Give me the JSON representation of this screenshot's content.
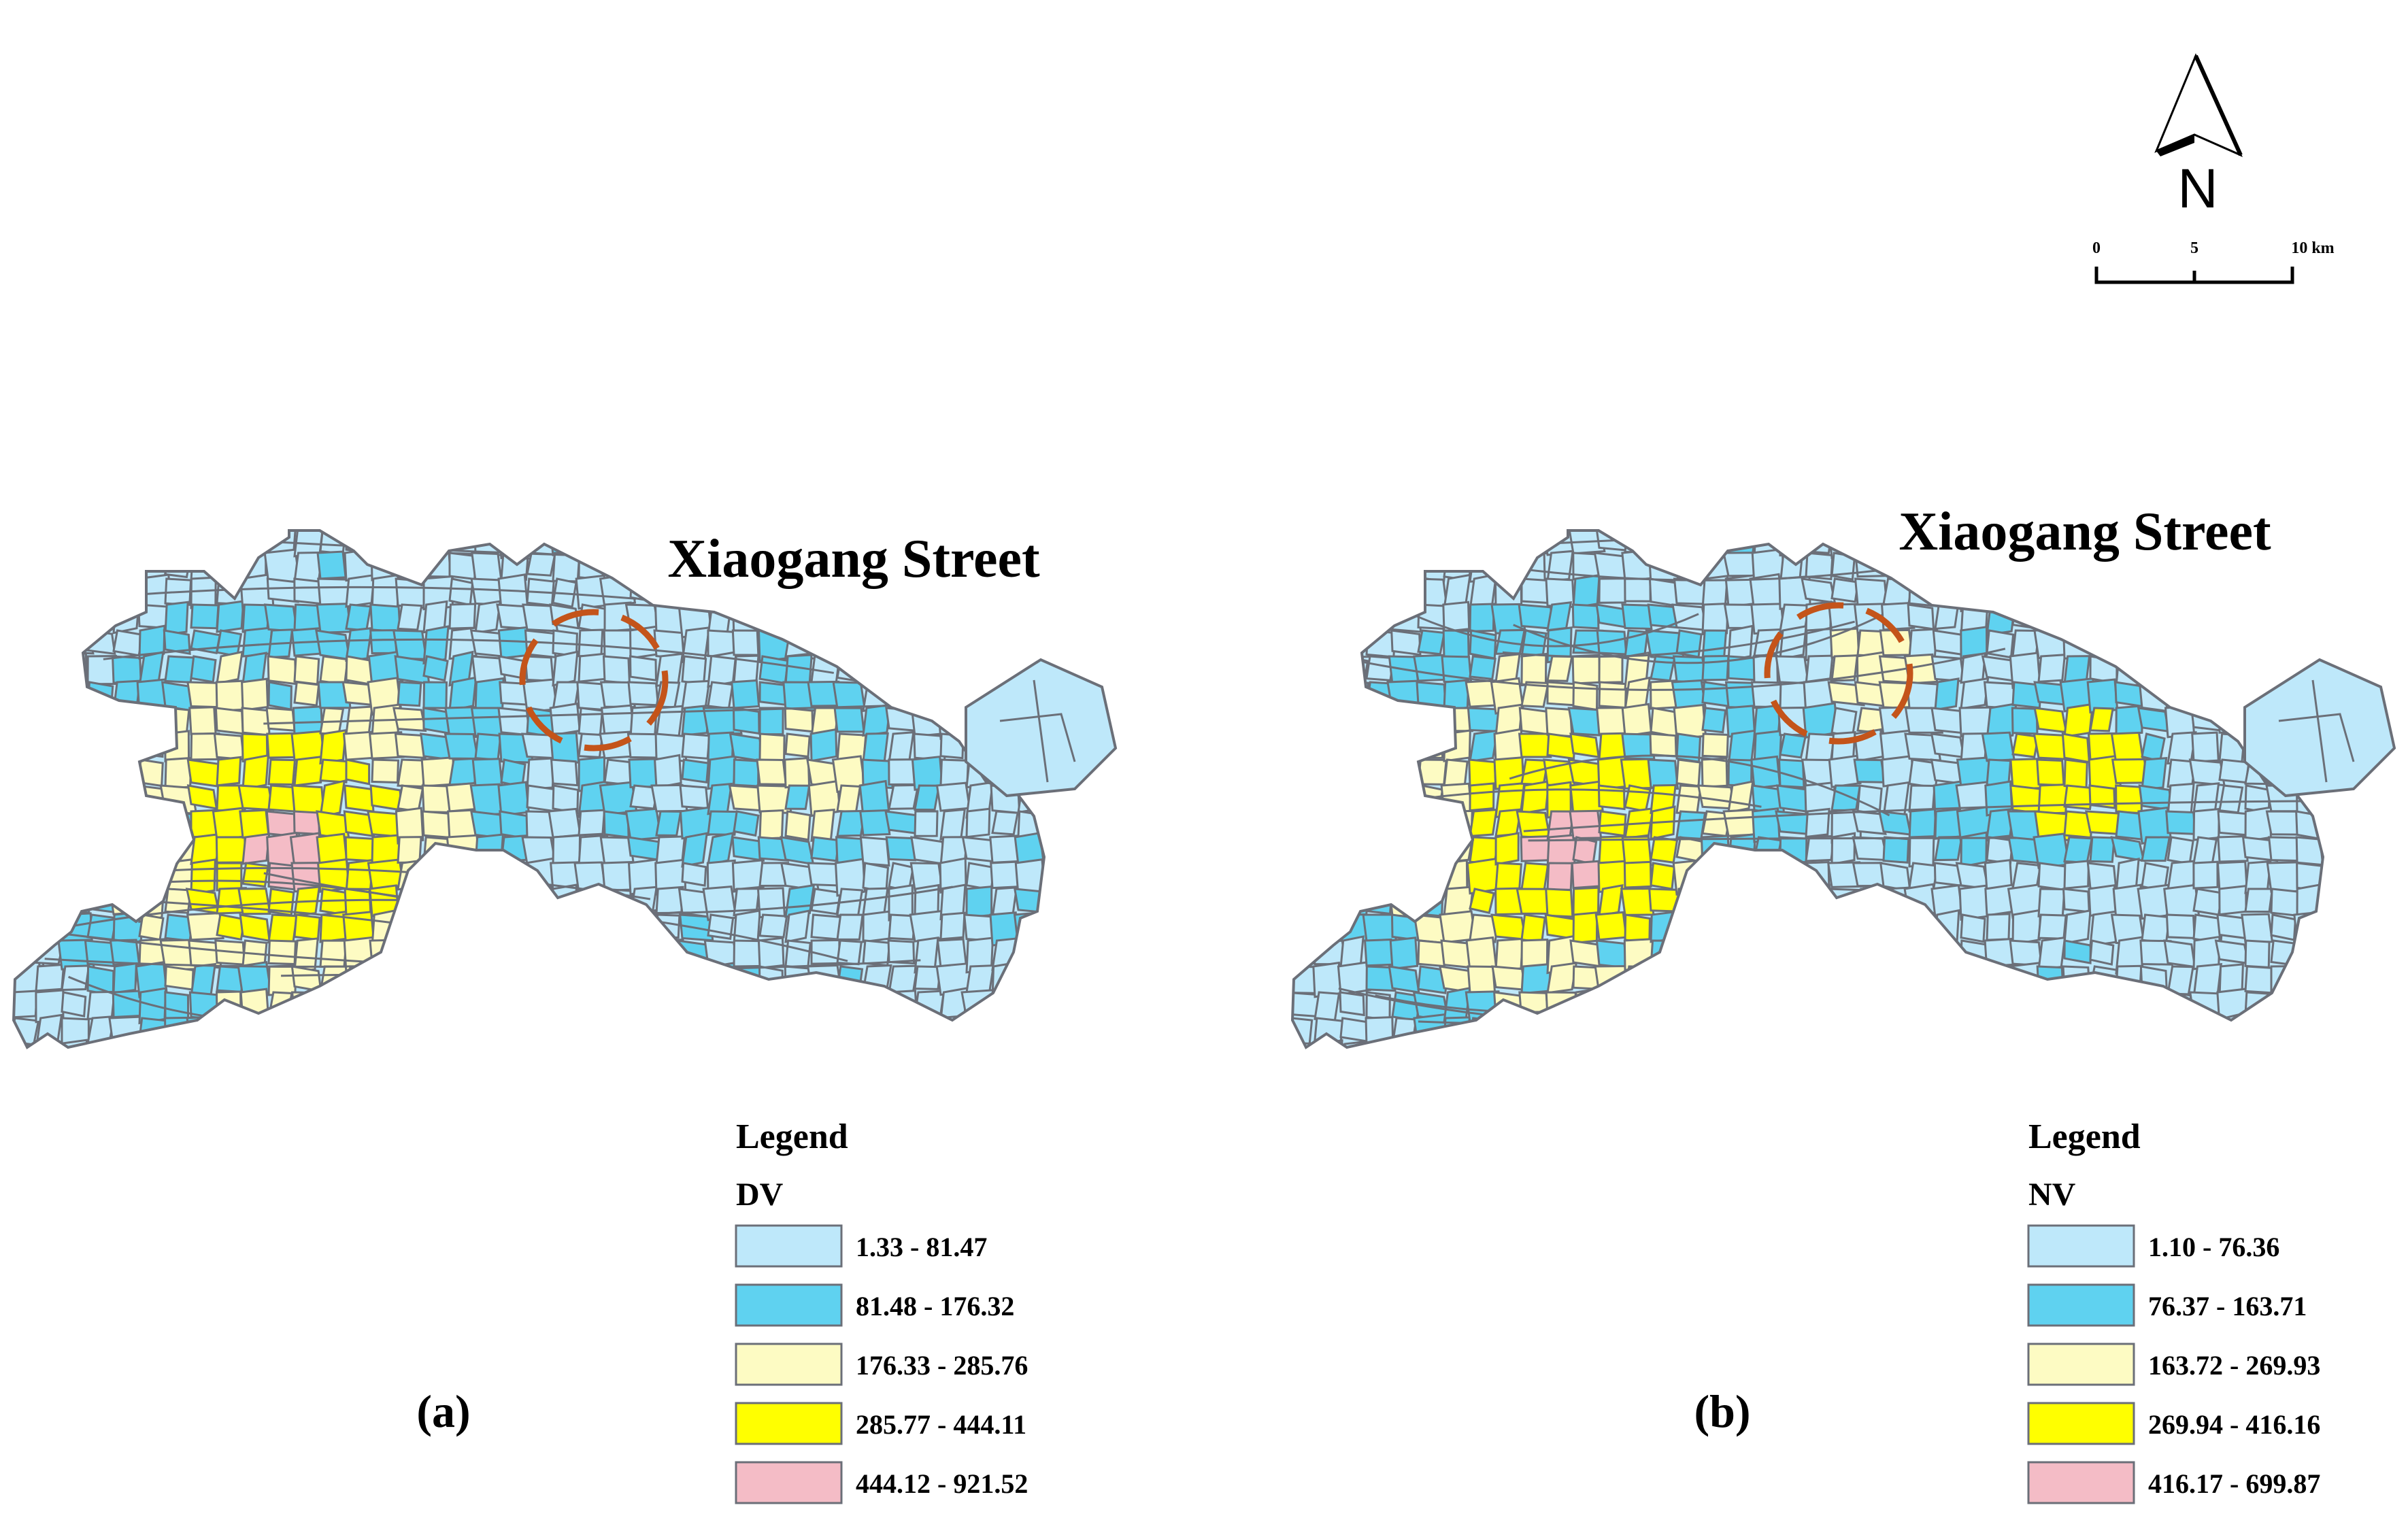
{
  "north_arrow": {
    "label": "N"
  },
  "scale_bar": {
    "ticks": [
      "0",
      "5",
      "10 km"
    ]
  },
  "colors": {
    "class1": "#bee8fa",
    "class2": "#5fd2f0",
    "class3": "#fdfbc3",
    "class4": "#ffff00",
    "class5": "#f4bcc6",
    "border": "#6b6f78",
    "highlight": "#c4541a"
  },
  "panels": [
    {
      "id": "a",
      "label": "(a)",
      "place_label": "Xiaogang Street",
      "legend": {
        "title": "Legend",
        "variable": "DV",
        "classes": [
          "1.33 - 81.47",
          "81.48 - 176.32",
          "176.33 - 285.76",
          "285.77 - 444.11",
          "444.12 - 921.52"
        ]
      }
    },
    {
      "id": "b",
      "label": "(b)",
      "place_label": "Xiaogang Street",
      "legend": {
        "title": "Legend",
        "variable": "NV",
        "classes": [
          "1.10 - 76.36",
          "76.37 - 163.71",
          "163.72 - 269.93",
          "269.94 - 416.16",
          "416.17 - 699.87"
        ]
      }
    }
  ]
}
